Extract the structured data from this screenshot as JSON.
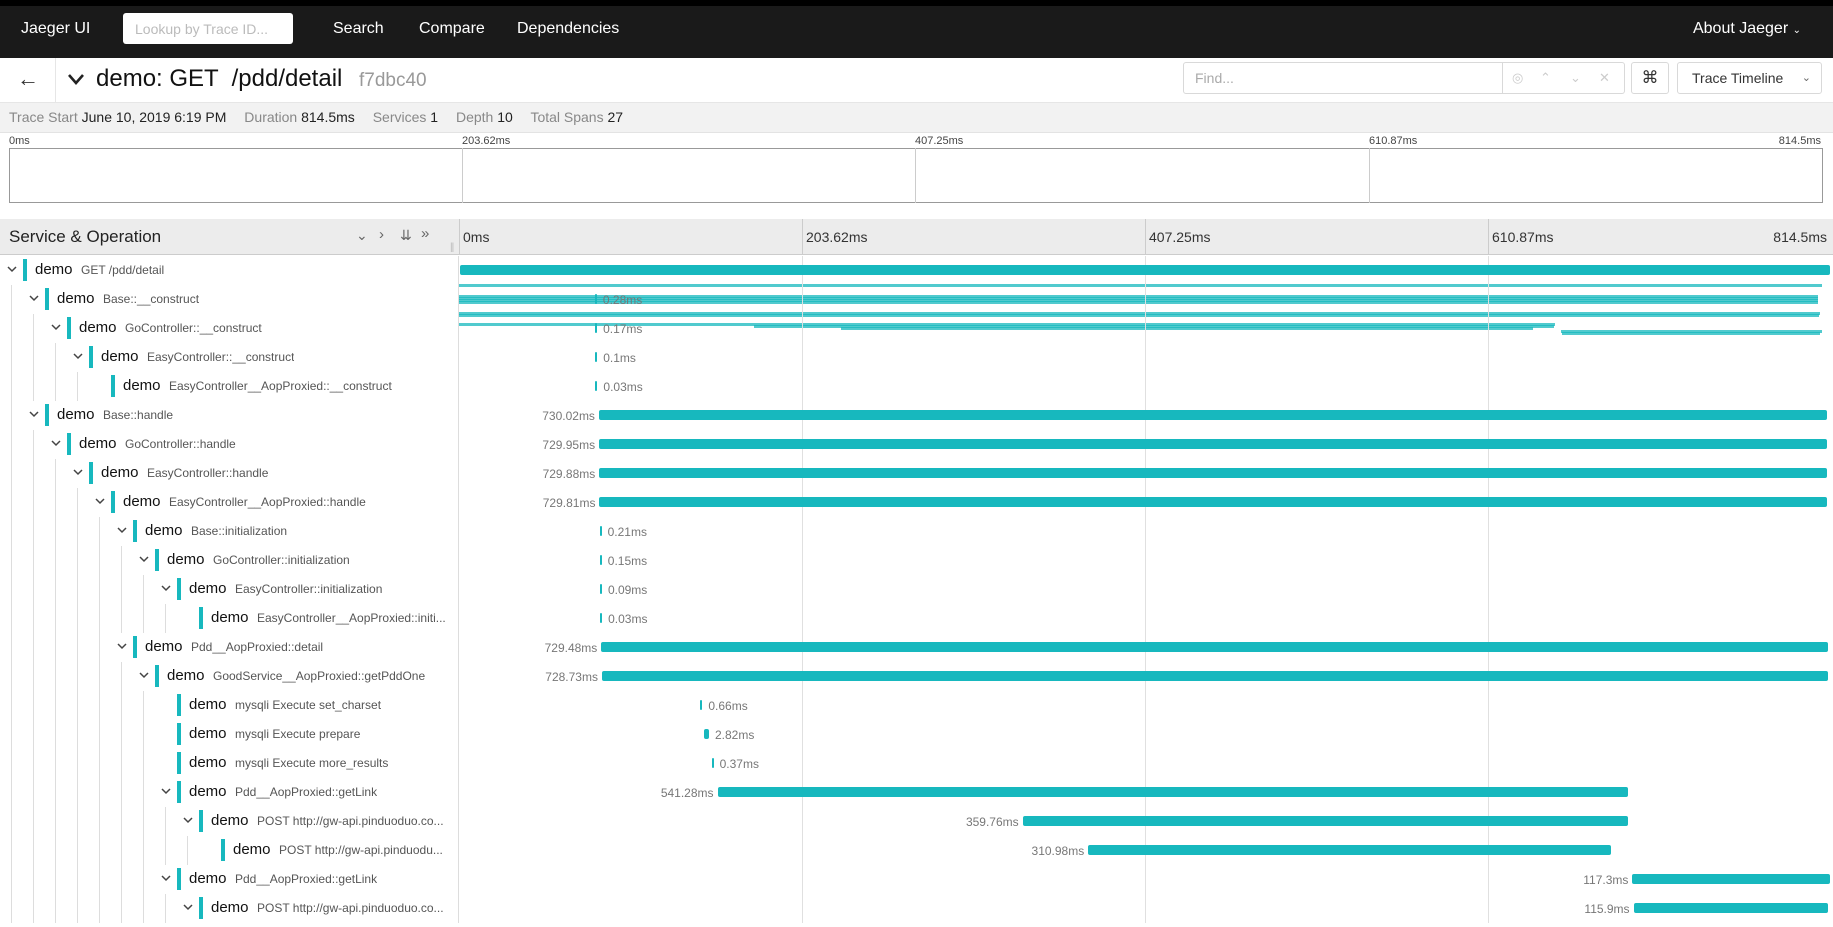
{
  "nav": {
    "brand": "Jaeger UI",
    "lookup_placeholder": "Lookup by Trace ID...",
    "links": [
      "Search",
      "Compare",
      "Dependencies"
    ],
    "about": "About Jaeger"
  },
  "trace": {
    "title": "demo: GET  /pdd/detail",
    "id": "f7dbc40",
    "find_placeholder": "Find...",
    "view_mode": "Trace Timeline",
    "shortcut_glyph": "⌘"
  },
  "summary": [
    {
      "label": "Trace Start",
      "value": "June 10, 2019 6:19 PM"
    },
    {
      "label": "Duration",
      "value": "814.5ms"
    },
    {
      "label": "Services",
      "value": "1"
    },
    {
      "label": "Depth",
      "value": "10"
    },
    {
      "label": "Total Spans",
      "value": "27"
    }
  ],
  "ticks": [
    "0ms",
    "203.62ms",
    "407.25ms",
    "610.87ms",
    "814.5ms"
  ],
  "timeline": {
    "header_title": "Service & Operation",
    "total_ms": 814.5
  },
  "colors": {
    "span": "#17b8be"
  },
  "spans": [
    {
      "depth": 0,
      "collapsible": true,
      "service": "demo",
      "op": "GET /pdd/detail",
      "start": 0,
      "duration": 814.5,
      "label": ""
    },
    {
      "depth": 1,
      "collapsible": true,
      "service": "demo",
      "op": "Base::__construct",
      "start": 80.2,
      "duration": 0.28,
      "label": "0.28ms"
    },
    {
      "depth": 2,
      "collapsible": true,
      "service": "demo",
      "op": "GoController::__construct",
      "start": 80.3,
      "duration": 0.17,
      "label": "0.17ms"
    },
    {
      "depth": 3,
      "collapsible": true,
      "service": "demo",
      "op": "EasyController::__construct",
      "start": 80.4,
      "duration": 0.1,
      "label": "0.1ms"
    },
    {
      "depth": 4,
      "collapsible": false,
      "service": "demo",
      "op": "EasyController__AopProxied::__construct",
      "start": 80.5,
      "duration": 0.03,
      "label": "0.03ms"
    },
    {
      "depth": 1,
      "collapsible": true,
      "service": "demo",
      "op": "Base::handle",
      "start": 82.6,
      "duration": 730.02,
      "label": "730.02ms"
    },
    {
      "depth": 2,
      "collapsible": true,
      "service": "demo",
      "op": "GoController::handle",
      "start": 82.7,
      "duration": 729.95,
      "label": "729.95ms"
    },
    {
      "depth": 3,
      "collapsible": true,
      "service": "demo",
      "op": "EasyController::handle",
      "start": 82.8,
      "duration": 729.88,
      "label": "729.88ms"
    },
    {
      "depth": 4,
      "collapsible": true,
      "service": "demo",
      "op": "EasyController__AopProxied::handle",
      "start": 82.9,
      "duration": 729.81,
      "label": "729.81ms"
    },
    {
      "depth": 5,
      "collapsible": true,
      "service": "demo",
      "op": "Base::initialization",
      "start": 83.0,
      "duration": 0.21,
      "label": "0.21ms"
    },
    {
      "depth": 6,
      "collapsible": true,
      "service": "demo",
      "op": "GoController::initialization",
      "start": 83.1,
      "duration": 0.15,
      "label": "0.15ms"
    },
    {
      "depth": 7,
      "collapsible": true,
      "service": "demo",
      "op": "EasyController::initialization",
      "start": 83.2,
      "duration": 0.09,
      "label": "0.09ms"
    },
    {
      "depth": 8,
      "collapsible": false,
      "service": "demo",
      "op": "EasyController__AopProxied::initi...",
      "start": 83.3,
      "duration": 0.03,
      "label": "0.03ms"
    },
    {
      "depth": 5,
      "collapsible": true,
      "service": "demo",
      "op": "Pdd__AopProxied::detail",
      "start": 84.0,
      "duration": 729.48,
      "label": "729.48ms"
    },
    {
      "depth": 6,
      "collapsible": true,
      "service": "demo",
      "op": "GoodService__AopProxied::getPddOne",
      "start": 84.4,
      "duration": 728.73,
      "label": "728.73ms"
    },
    {
      "depth": 7,
      "collapsible": false,
      "service": "demo",
      "op": "mysqli Execute set_charset",
      "start": 142.9,
      "duration": 0.66,
      "label": "0.66ms"
    },
    {
      "depth": 7,
      "collapsible": false,
      "service": "demo",
      "op": "mysqli Execute prepare",
      "start": 145.2,
      "duration": 2.82,
      "label": "2.82ms"
    },
    {
      "depth": 7,
      "collapsible": false,
      "service": "demo",
      "op": "mysqli Execute more_results",
      "start": 149.6,
      "duration": 0.37,
      "label": "0.37ms"
    },
    {
      "depth": 7,
      "collapsible": true,
      "service": "demo",
      "op": "Pdd__AopProxied::getLink",
      "start": 153.1,
      "duration": 541.28,
      "label": "541.28ms"
    },
    {
      "depth": 8,
      "collapsible": true,
      "service": "demo",
      "op": "POST http://gw-api.pinduoduo.co...",
      "start": 334.5,
      "duration": 359.76,
      "label": "359.76ms"
    },
    {
      "depth": 9,
      "collapsible": false,
      "service": "demo",
      "op": "POST http://gw-api.pinduodu...",
      "start": 373.5,
      "duration": 310.98,
      "label": "310.98ms"
    },
    {
      "depth": 7,
      "collapsible": true,
      "service": "demo",
      "op": "Pdd__AopProxied::getLink",
      "start": 697.0,
      "duration": 117.3,
      "label": "117.3ms"
    },
    {
      "depth": 8,
      "collapsible": true,
      "service": "demo",
      "op": "POST http://gw-api.pinduoduo.co...",
      "start": 697.7,
      "duration": 115.9,
      "label": "115.9ms"
    }
  ]
}
